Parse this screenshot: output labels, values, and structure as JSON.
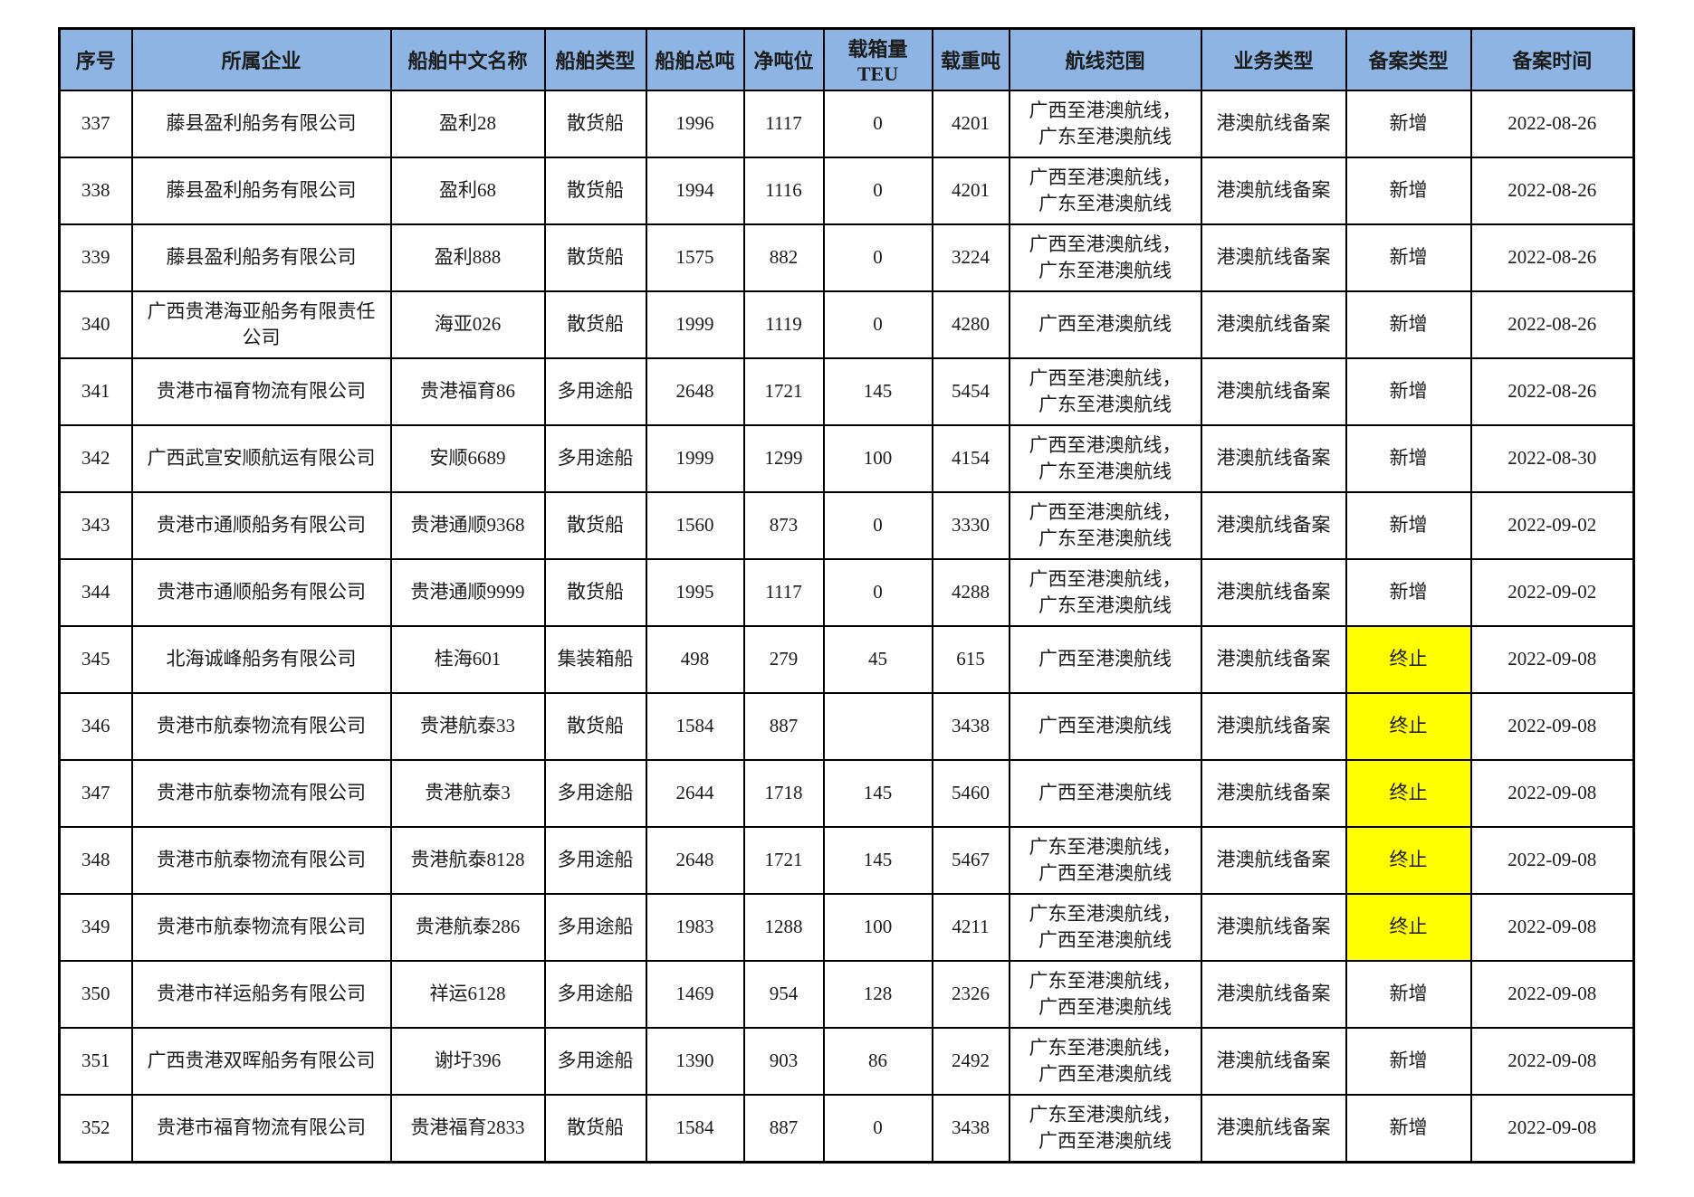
{
  "table": {
    "header_bg": "#8DB4E2",
    "highlight_color": "#FFFF00",
    "columns": [
      {
        "key": "no",
        "label": "序号"
      },
      {
        "key": "company",
        "label": "所属企业"
      },
      {
        "key": "ship_name",
        "label": "船舶中文名称"
      },
      {
        "key": "ship_type",
        "label": "船舶类型"
      },
      {
        "key": "gross_tonnage",
        "label": "船舶总吨"
      },
      {
        "key": "net_tonnage",
        "label": "净吨位"
      },
      {
        "key": "teu",
        "label": "载箱量TEU"
      },
      {
        "key": "dwt",
        "label": "载重吨"
      },
      {
        "key": "route",
        "label": "航线范围"
      },
      {
        "key": "business_type",
        "label": "业务类型"
      },
      {
        "key": "filing_type",
        "label": "备案类型"
      },
      {
        "key": "filing_date",
        "label": "备案时间"
      }
    ],
    "rows": [
      {
        "no": "337",
        "company": "藤县盈利船务有限公司",
        "ship_name": "盈利28",
        "ship_type": "散货船",
        "gross_tonnage": "1996",
        "net_tonnage": "1117",
        "teu": "0",
        "dwt": "4201",
        "route": "广西至港澳航线，\n广东至港澳航线",
        "business_type": "港澳航线备案",
        "filing_type": "新增",
        "filing_highlight": false,
        "filing_date": "2022-08-26"
      },
      {
        "no": "338",
        "company": "藤县盈利船务有限公司",
        "ship_name": "盈利68",
        "ship_type": "散货船",
        "gross_tonnage": "1994",
        "net_tonnage": "1116",
        "teu": "0",
        "dwt": "4201",
        "route": "广西至港澳航线，\n广东至港澳航线",
        "business_type": "港澳航线备案",
        "filing_type": "新增",
        "filing_highlight": false,
        "filing_date": "2022-08-26"
      },
      {
        "no": "339",
        "company": "藤县盈利船务有限公司",
        "ship_name": "盈利888",
        "ship_type": "散货船",
        "gross_tonnage": "1575",
        "net_tonnage": "882",
        "teu": "0",
        "dwt": "3224",
        "route": "广西至港澳航线，\n广东至港澳航线",
        "business_type": "港澳航线备案",
        "filing_type": "新增",
        "filing_highlight": false,
        "filing_date": "2022-08-26"
      },
      {
        "no": "340",
        "company": "广西贵港海亚船务有限责任公司",
        "ship_name": "海亚026",
        "ship_type": "散货船",
        "gross_tonnage": "1999",
        "net_tonnage": "1119",
        "teu": "0",
        "dwt": "4280",
        "route": "广西至港澳航线",
        "business_type": "港澳航线备案",
        "filing_type": "新增",
        "filing_highlight": false,
        "filing_date": "2022-08-26"
      },
      {
        "no": "341",
        "company": "贵港市福育物流有限公司",
        "ship_name": "贵港福育86",
        "ship_type": "多用途船",
        "gross_tonnage": "2648",
        "net_tonnage": "1721",
        "teu": "145",
        "dwt": "5454",
        "route": "广西至港澳航线，\n广东至港澳航线",
        "business_type": "港澳航线备案",
        "filing_type": "新增",
        "filing_highlight": false,
        "filing_date": "2022-08-26"
      },
      {
        "no": "342",
        "company": "广西武宣安顺航运有限公司",
        "ship_name": "安顺6689",
        "ship_type": "多用途船",
        "gross_tonnage": "1999",
        "net_tonnage": "1299",
        "teu": "100",
        "dwt": "4154",
        "route": "广西至港澳航线，\n广东至港澳航线",
        "business_type": "港澳航线备案",
        "filing_type": "新增",
        "filing_highlight": false,
        "filing_date": "2022-08-30"
      },
      {
        "no": "343",
        "company": "贵港市通顺船务有限公司",
        "ship_name": "贵港通顺9368",
        "ship_type": "散货船",
        "gross_tonnage": "1560",
        "net_tonnage": "873",
        "teu": "0",
        "dwt": "3330",
        "route": "广西至港澳航线，\n广东至港澳航线",
        "business_type": "港澳航线备案",
        "filing_type": "新增",
        "filing_highlight": false,
        "filing_date": "2022-09-02"
      },
      {
        "no": "344",
        "company": "贵港市通顺船务有限公司",
        "ship_name": "贵港通顺9999",
        "ship_type": "散货船",
        "gross_tonnage": "1995",
        "net_tonnage": "1117",
        "teu": "0",
        "dwt": "4288",
        "route": "广西至港澳航线，\n广东至港澳航线",
        "business_type": "港澳航线备案",
        "filing_type": "新增",
        "filing_highlight": false,
        "filing_date": "2022-09-02"
      },
      {
        "no": "345",
        "company": "北海诚峰船务有限公司",
        "ship_name": "桂海601",
        "ship_type": "集装箱船",
        "gross_tonnage": "498",
        "net_tonnage": "279",
        "teu": "45",
        "dwt": "615",
        "route": "广西至港澳航线",
        "business_type": "港澳航线备案",
        "filing_type": "终止",
        "filing_highlight": true,
        "filing_date": "2022-09-08"
      },
      {
        "no": "346",
        "company": "贵港市航泰物流有限公司",
        "ship_name": "贵港航泰33",
        "ship_type": "散货船",
        "gross_tonnage": "1584",
        "net_tonnage": "887",
        "teu": "",
        "dwt": "3438",
        "route": "广西至港澳航线",
        "business_type": "港澳航线备案",
        "filing_type": "终止",
        "filing_highlight": true,
        "filing_date": "2022-09-08"
      },
      {
        "no": "347",
        "company": "贵港市航泰物流有限公司",
        "ship_name": "贵港航泰3",
        "ship_type": "多用途船",
        "gross_tonnage": "2644",
        "net_tonnage": "1718",
        "teu": "145",
        "dwt": "5460",
        "route": "广西至港澳航线",
        "business_type": "港澳航线备案",
        "filing_type": "终止",
        "filing_highlight": true,
        "filing_date": "2022-09-08"
      },
      {
        "no": "348",
        "company": "贵港市航泰物流有限公司",
        "ship_name": "贵港航泰8128",
        "ship_type": "多用途船",
        "gross_tonnage": "2648",
        "net_tonnage": "1721",
        "teu": "145",
        "dwt": "5467",
        "route": "广东至港澳航线，\n广西至港澳航线",
        "business_type": "港澳航线备案",
        "filing_type": "终止",
        "filing_highlight": true,
        "filing_date": "2022-09-08"
      },
      {
        "no": "349",
        "company": "贵港市航泰物流有限公司",
        "ship_name": "贵港航泰286",
        "ship_type": "多用途船",
        "gross_tonnage": "1983",
        "net_tonnage": "1288",
        "teu": "100",
        "dwt": "4211",
        "route": "广东至港澳航线，\n广西至港澳航线",
        "business_type": "港澳航线备案",
        "filing_type": "终止",
        "filing_highlight": true,
        "filing_date": "2022-09-08"
      },
      {
        "no": "350",
        "company": "贵港市祥运船务有限公司",
        "ship_name": "祥运6128",
        "ship_type": "多用途船",
        "gross_tonnage": "1469",
        "net_tonnage": "954",
        "teu": "128",
        "dwt": "2326",
        "route": "广东至港澳航线，\n广西至港澳航线",
        "business_type": "港澳航线备案",
        "filing_type": "新增",
        "filing_highlight": false,
        "filing_date": "2022-09-08"
      },
      {
        "no": "351",
        "company": "广西贵港双晖船务有限公司",
        "ship_name": "谢圩396",
        "ship_type": "多用途船",
        "gross_tonnage": "1390",
        "net_tonnage": "903",
        "teu": "86",
        "dwt": "2492",
        "route": "广东至港澳航线，\n广西至港澳航线",
        "business_type": "港澳航线备案",
        "filing_type": "新增",
        "filing_highlight": false,
        "filing_date": "2022-09-08"
      },
      {
        "no": "352",
        "company": "贵港市福育物流有限公司",
        "ship_name": "贵港福育2833",
        "ship_type": "散货船",
        "gross_tonnage": "1584",
        "net_tonnage": "887",
        "teu": "0",
        "dwt": "3438",
        "route": "广东至港澳航线，\n广西至港澳航线",
        "business_type": "港澳航线备案",
        "filing_type": "新增",
        "filing_highlight": false,
        "filing_date": "2022-09-08"
      }
    ]
  }
}
